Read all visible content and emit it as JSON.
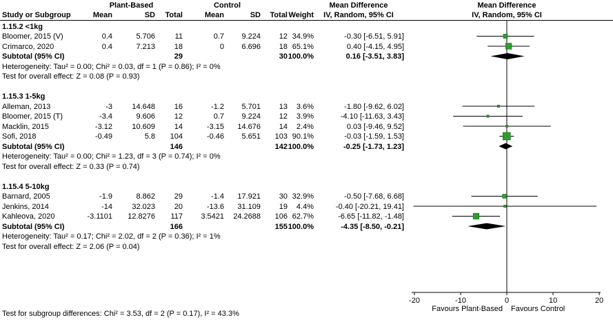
{
  "colors": {
    "marker_green": "#2f9e2f",
    "marker_green_dark": "#166b16",
    "diamond_black": "#000000"
  },
  "headers": {
    "study": "Study or Subgroup",
    "group1": "Plant-Based",
    "group2": "Control",
    "mean": "Mean",
    "sd": "SD",
    "total": "Total",
    "weight": "Weight",
    "md": "Mean Difference",
    "ci_method": "IV, Random, 95% CI"
  },
  "footer": {
    "subgroup_differences": "Test for subgroup differences: Chi² = 3.53, df = 2 (P = 0.17), I² = 43.3%"
  },
  "chart_data": {
    "type": "forest",
    "effect_measure": "Mean Difference, IV, Random, 95% CI",
    "xlim": [
      -20,
      20
    ],
    "ticks": [
      -20,
      -10,
      0,
      10,
      20
    ],
    "axis_labels": {
      "left": "Favours Plant-Based",
      "right": "Favours Control"
    },
    "subgroups": [
      {
        "id": "1.15.2 <1kg",
        "studies": [
          {
            "name": "Bloomer, 2015 (V)",
            "mean1": 0.4,
            "sd1": 5.706,
            "n1": 11,
            "mean2": 0.7,
            "sd2": 9.224,
            "n2": 12,
            "weight": 34.9,
            "est": -0.3,
            "lo": -6.51,
            "hi": 5.91
          },
          {
            "name": "Crimarco, 2020",
            "mean1": 0.4,
            "sd1": 7.213,
            "n1": 18,
            "mean2": 0,
            "sd2": 6.696,
            "n2": 18,
            "weight": 65.1,
            "est": 0.4,
            "lo": -4.15,
            "hi": 4.95
          }
        ],
        "subtotal": {
          "label": "Subtotal (95% CI)",
          "n1": 29,
          "n2": 30,
          "weight": 100,
          "est": 0.16,
          "lo": -3.51,
          "hi": 3.83
        },
        "heterogeneity": "Heterogeneity: Tau² = 0.00; Chi² = 0.03, df = 1 (P = 0.86); I² = 0%",
        "overall_effect": "Test for overall effect: Z = 0.08 (P = 0.93)"
      },
      {
        "id": "1.15.3 1-5kg",
        "studies": [
          {
            "name": "Alleman, 2013",
            "mean1": -3,
            "sd1": 14.648,
            "n1": 16,
            "mean2": -1.2,
            "sd2": 5.701,
            "n2": 13,
            "weight": 3.6,
            "est": -1.8,
            "lo": -9.62,
            "hi": 6.02
          },
          {
            "name": "Bloomer, 2015 (T)",
            "mean1": -3.4,
            "sd1": 9.606,
            "n1": 12,
            "mean2": 0.7,
            "sd2": 9.224,
            "n2": 12,
            "weight": 3.9,
            "est": -4.1,
            "lo": -11.63,
            "hi": 3.43
          },
          {
            "name": "Macklin, 2015",
            "mean1": -3.12,
            "sd1": 10.609,
            "n1": 14,
            "mean2": -3.15,
            "sd2": 14.676,
            "n2": 14,
            "weight": 2.4,
            "est": 0.03,
            "lo": -9.46,
            "hi": 9.52
          },
          {
            "name": "Sofi, 2018",
            "mean1": -0.49,
            "sd1": 5.8,
            "n1": 104,
            "mean2": -0.46,
            "sd2": 5.651,
            "n2": 103,
            "weight": 90.1,
            "est": -0.03,
            "lo": -1.59,
            "hi": 1.53
          }
        ],
        "subtotal": {
          "label": "Subtotal (95% CI)",
          "n1": 146,
          "n2": 142,
          "weight": 100,
          "est": -0.25,
          "lo": -1.73,
          "hi": 1.23
        },
        "heterogeneity": "Heterogeneity: Tau² = 0.00; Chi² = 1.23, df = 3 (P = 0.74); I² = 0%",
        "overall_effect": "Test for overall effect: Z = 0.33 (P = 0.74)"
      },
      {
        "id": "1.15.4 5-10kg",
        "studies": [
          {
            "name": "Barnard, 2005",
            "mean1": -1.9,
            "sd1": 8.862,
            "n1": 29,
            "mean2": -1.4,
            "sd2": 17.921,
            "n2": 30,
            "weight": 32.9,
            "est": -0.5,
            "lo": -7.68,
            "hi": 6.68
          },
          {
            "name": "Jenkins, 2014",
            "mean1": -14,
            "sd1": 32.023,
            "n1": 20,
            "mean2": -13.6,
            "sd2": 31.109,
            "n2": 19,
            "weight": 4.4,
            "est": -0.4,
            "lo": -20.21,
            "hi": 19.41
          },
          {
            "name": "Kahleova, 2020",
            "mean1": -3.1101,
            "sd1": 12.8276,
            "n1": 117,
            "mean2": 3.5421,
            "sd2": 24.2688,
            "n2": 106,
            "weight": 62.7,
            "est": -6.65,
            "lo": -11.82,
            "hi": -1.48
          }
        ],
        "subtotal": {
          "label": "Subtotal (95% CI)",
          "n1": 166,
          "n2": 155,
          "weight": 100,
          "est": -4.35,
          "lo": -8.5,
          "hi": -0.21
        },
        "heterogeneity": "Heterogeneity: Tau² = 0.17; Chi² = 2.02, df = 2 (P = 0.36); I² = 1%",
        "overall_effect": "Test for overall effect: Z = 2.06 (P = 0.04)"
      }
    ]
  }
}
